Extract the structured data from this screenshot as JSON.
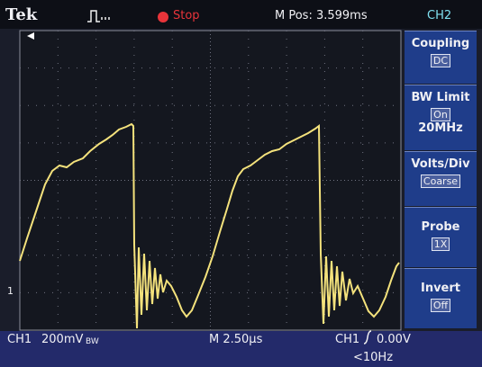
{
  "header": {
    "brand": "Tek",
    "trigger_state": "Stop",
    "position": "M Pos: 3.599ms",
    "channel": "CH2"
  },
  "menu": [
    {
      "label": "Coupling",
      "value": "DC"
    },
    {
      "label": "BW Limit",
      "value": "On",
      "detail": "20MHz"
    },
    {
      "label": "Volts/Div",
      "value": "Coarse"
    },
    {
      "label": "Probe",
      "value": "1X"
    },
    {
      "label": "Invert",
      "value": "Off"
    }
  ],
  "screen": {
    "ground_marker": "1"
  },
  "footer": {
    "channel": "CH1",
    "scale": "200mV",
    "bw_flag": "BW",
    "timebase": "M 2.50µs",
    "trigger_channel": "CH1",
    "trigger_level": "0.00V",
    "trigger_freq": "<10Hz"
  }
}
